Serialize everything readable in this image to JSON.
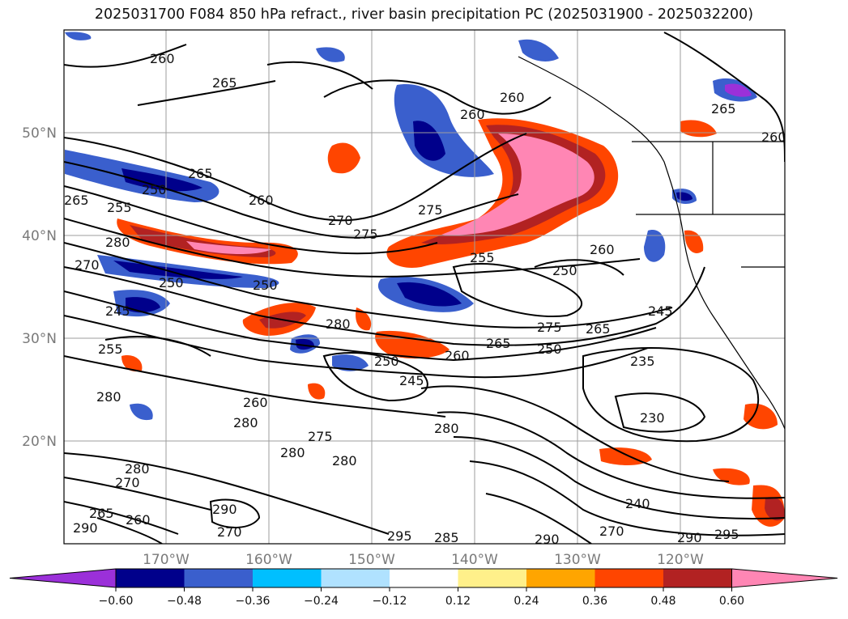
{
  "title": "2025031700 F084 850 hPa refract., river basin precipitation PC (2025031900 - 2025032200)",
  "lat_labels": [
    "50°N",
    "40°N",
    "30°N",
    "20°N"
  ],
  "lon_labels": [
    "170°W",
    "160°W",
    "150°W",
    "140°W",
    "130°W",
    "120°W"
  ],
  "colorbar": {
    "colors": [
      "#9b30d9",
      "#00008b",
      "#3a5fcd",
      "#00bfff",
      "#b0e2ff",
      "#ffffff",
      "#fff08a",
      "#ffa500",
      "#ff4500",
      "#b22222",
      "#ff86b4"
    ],
    "ticks": [
      "−0.60",
      "−0.48",
      "−0.36",
      "−0.24",
      "−0.12",
      "0.12",
      "0.24",
      "0.36",
      "0.48",
      "0.60"
    ]
  },
  "contour_labels": [
    "260",
    "265",
    "265",
    "260",
    "255",
    "265",
    "250",
    "260",
    "260",
    "270",
    "275",
    "280",
    "270",
    "275",
    "255",
    "250",
    "260",
    "245",
    "250",
    "280",
    "255",
    "250",
    "250",
    "245",
    "260",
    "265",
    "275",
    "250",
    "265",
    "245",
    "235",
    "280",
    "280",
    "280",
    "275",
    "230",
    "280",
    "280",
    "280",
    "270",
    "260",
    "265",
    "290",
    "270",
    "260",
    "290",
    "295",
    "285",
    "290",
    "270",
    "290",
    "295",
    "240",
    "260",
    "265"
  ]
}
